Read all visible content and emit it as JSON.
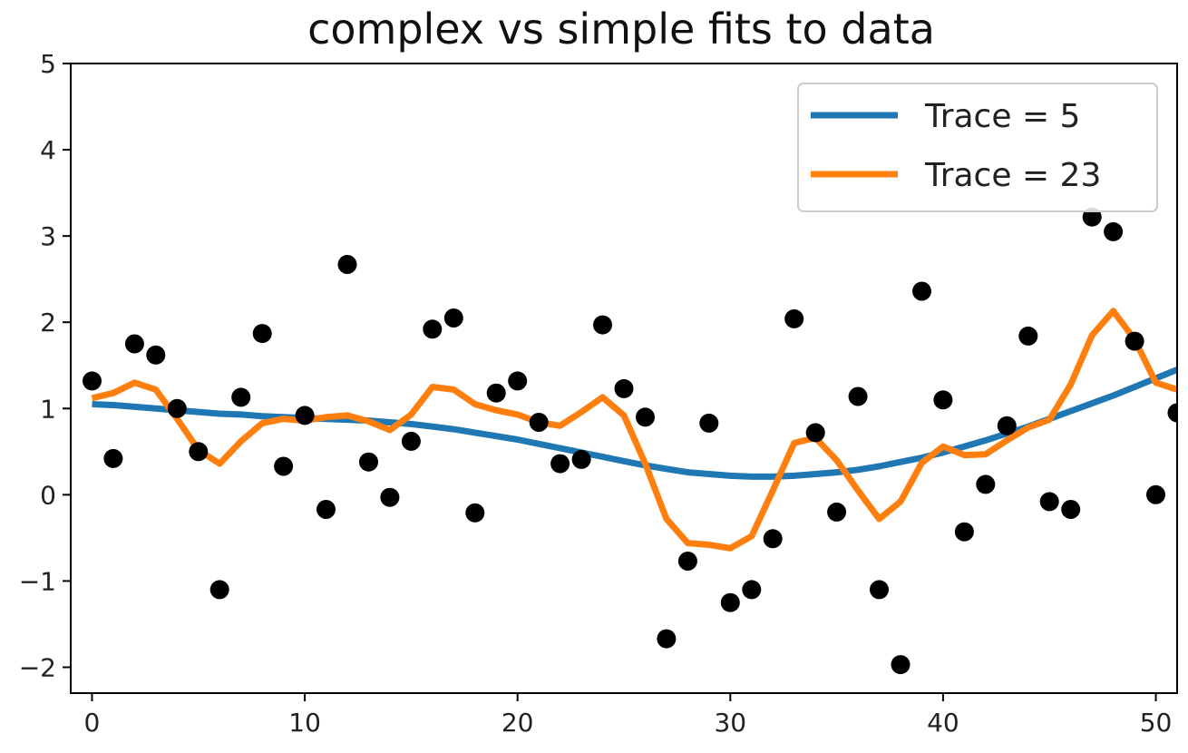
{
  "chart_data": {
    "type": "line",
    "title": "complex vs simple fits to data",
    "xlabel": "",
    "ylabel": "",
    "xlim": [
      -1,
      51
    ],
    "ylim": [
      -2.3,
      5.0
    ],
    "xticks": [
      0,
      10,
      20,
      30,
      40,
      50
    ],
    "yticks": [
      -2,
      -1,
      0,
      1,
      2,
      3,
      4,
      5
    ],
    "grid": false,
    "legend_placement": "top-right",
    "colors": {
      "scatter": "#000000",
      "trace5": "#1f77b4",
      "trace23": "#ff7f0e"
    },
    "scatter": {
      "x": [
        0,
        1,
        2,
        3,
        4,
        5,
        6,
        7,
        8,
        9,
        10,
        11,
        12,
        13,
        14,
        15,
        16,
        17,
        18,
        19,
        20,
        21,
        22,
        23,
        24,
        25,
        26,
        27,
        28,
        29,
        30,
        31,
        32,
        33,
        34,
        35,
        36,
        37,
        38,
        39,
        40,
        41,
        42,
        43,
        44,
        45,
        46,
        47,
        48,
        49,
        50,
        51
      ],
      "y": [
        1.32,
        0.42,
        1.75,
        1.62,
        1.0,
        0.5,
        -1.1,
        1.13,
        1.87,
        0.33,
        0.92,
        -0.17,
        2.67,
        0.38,
        -0.03,
        0.62,
        1.92,
        2.05,
        -0.21,
        1.18,
        1.32,
        0.84,
        0.36,
        0.41,
        1.97,
        1.23,
        0.9,
        -1.67,
        -0.77,
        0.83,
        -1.25,
        -1.1,
        -0.51,
        2.04,
        0.72,
        -0.2,
        1.14,
        -1.1,
        -1.97,
        2.36,
        1.1,
        -0.43,
        0.12,
        0.8,
        1.84,
        -0.08,
        -0.17,
        3.22,
        3.05,
        1.78,
        0.0,
        0.95
      ]
    },
    "series": [
      {
        "name": "Trace = 5",
        "x": [
          0,
          1,
          2,
          3,
          4,
          5,
          6,
          7,
          8,
          9,
          10,
          11,
          12,
          13,
          14,
          15,
          16,
          17,
          18,
          19,
          20,
          21,
          22,
          23,
          24,
          25,
          26,
          27,
          28,
          29,
          30,
          31,
          32,
          33,
          34,
          35,
          36,
          37,
          38,
          39,
          40,
          41,
          42,
          43,
          44,
          45,
          46,
          47,
          48,
          49,
          50,
          51
        ],
        "y": [
          1.05,
          1.04,
          1.02,
          1.0,
          0.98,
          0.96,
          0.94,
          0.93,
          0.91,
          0.9,
          0.89,
          0.88,
          0.87,
          0.86,
          0.84,
          0.82,
          0.79,
          0.76,
          0.72,
          0.68,
          0.64,
          0.59,
          0.54,
          0.49,
          0.44,
          0.39,
          0.34,
          0.3,
          0.26,
          0.24,
          0.22,
          0.21,
          0.21,
          0.22,
          0.24,
          0.26,
          0.29,
          0.33,
          0.38,
          0.43,
          0.49,
          0.56,
          0.63,
          0.71,
          0.79,
          0.88,
          0.97,
          1.06,
          1.15,
          1.25,
          1.35,
          1.45
        ]
      },
      {
        "name": "Trace = 23",
        "x": [
          0,
          1,
          2,
          3,
          4,
          5,
          6,
          7,
          8,
          9,
          10,
          11,
          12,
          13,
          14,
          15,
          16,
          17,
          18,
          19,
          20,
          21,
          22,
          23,
          24,
          25,
          26,
          27,
          28,
          29,
          30,
          31,
          32,
          33,
          34,
          35,
          36,
          37,
          38,
          39,
          40,
          41,
          42,
          43,
          44,
          45,
          46,
          47,
          48,
          49,
          50,
          51
        ],
        "y": [
          1.12,
          1.18,
          1.3,
          1.22,
          0.88,
          0.52,
          0.36,
          0.62,
          0.83,
          0.88,
          0.86,
          0.9,
          0.92,
          0.85,
          0.75,
          0.93,
          1.25,
          1.22,
          1.05,
          0.98,
          0.93,
          0.84,
          0.8,
          0.96,
          1.13,
          0.92,
          0.36,
          -0.28,
          -0.56,
          -0.58,
          -0.62,
          -0.48,
          0.05,
          0.6,
          0.66,
          0.4,
          0.05,
          -0.28,
          -0.08,
          0.37,
          0.56,
          0.46,
          0.47,
          0.63,
          0.78,
          0.87,
          1.28,
          1.85,
          2.13,
          1.8,
          1.3,
          1.22
        ]
      }
    ]
  }
}
